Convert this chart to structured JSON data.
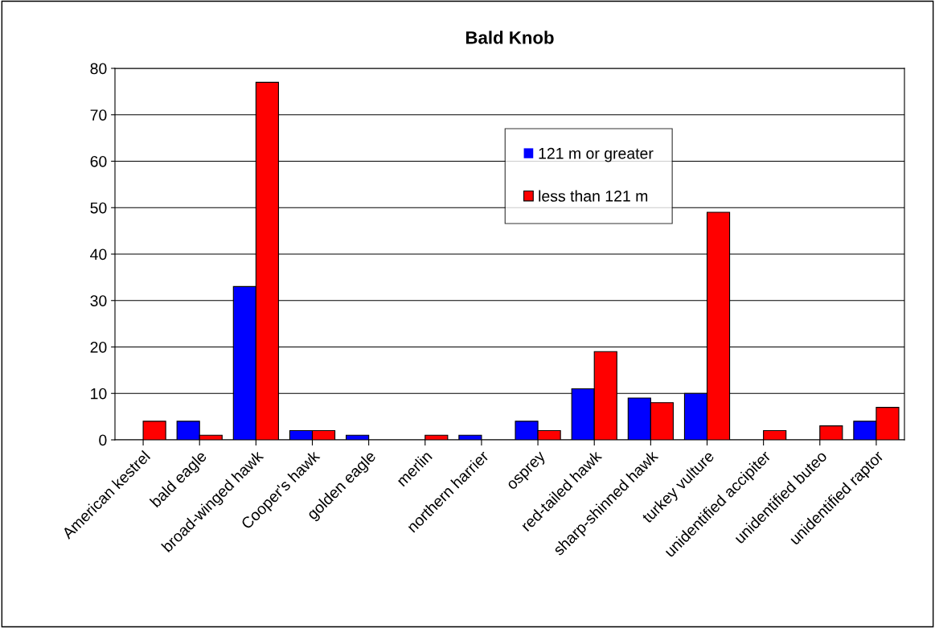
{
  "chart_data": {
    "type": "bar",
    "title": "Bald Knob",
    "categories": [
      "American kestrel",
      "bald eagle",
      "broad-winged hawk",
      "Cooper's hawk",
      "golden eagle",
      "merlin",
      "northern harrier",
      "osprey",
      "red-tailed hawk",
      "sharp-shinned hawk",
      "turkey vulture",
      "unidentified accipiter",
      "unidentified buteo",
      "unidentified raptor"
    ],
    "series": [
      {
        "name": "121 m or greater",
        "color": "#0000ff",
        "values": [
          0,
          4,
          33,
          2,
          1,
          0,
          1,
          4,
          11,
          9,
          10,
          0,
          0,
          4
        ]
      },
      {
        "name": "less than 121 m",
        "color": "#ff0000",
        "values": [
          4,
          1,
          77,
          2,
          0,
          1,
          0,
          2,
          19,
          8,
          49,
          2,
          3,
          7
        ]
      }
    ],
    "ylim": [
      0,
      80
    ],
    "yticks": [
      0,
      10,
      20,
      30,
      40,
      50,
      60,
      70,
      80
    ],
    "grid": "y",
    "legend": "top"
  }
}
